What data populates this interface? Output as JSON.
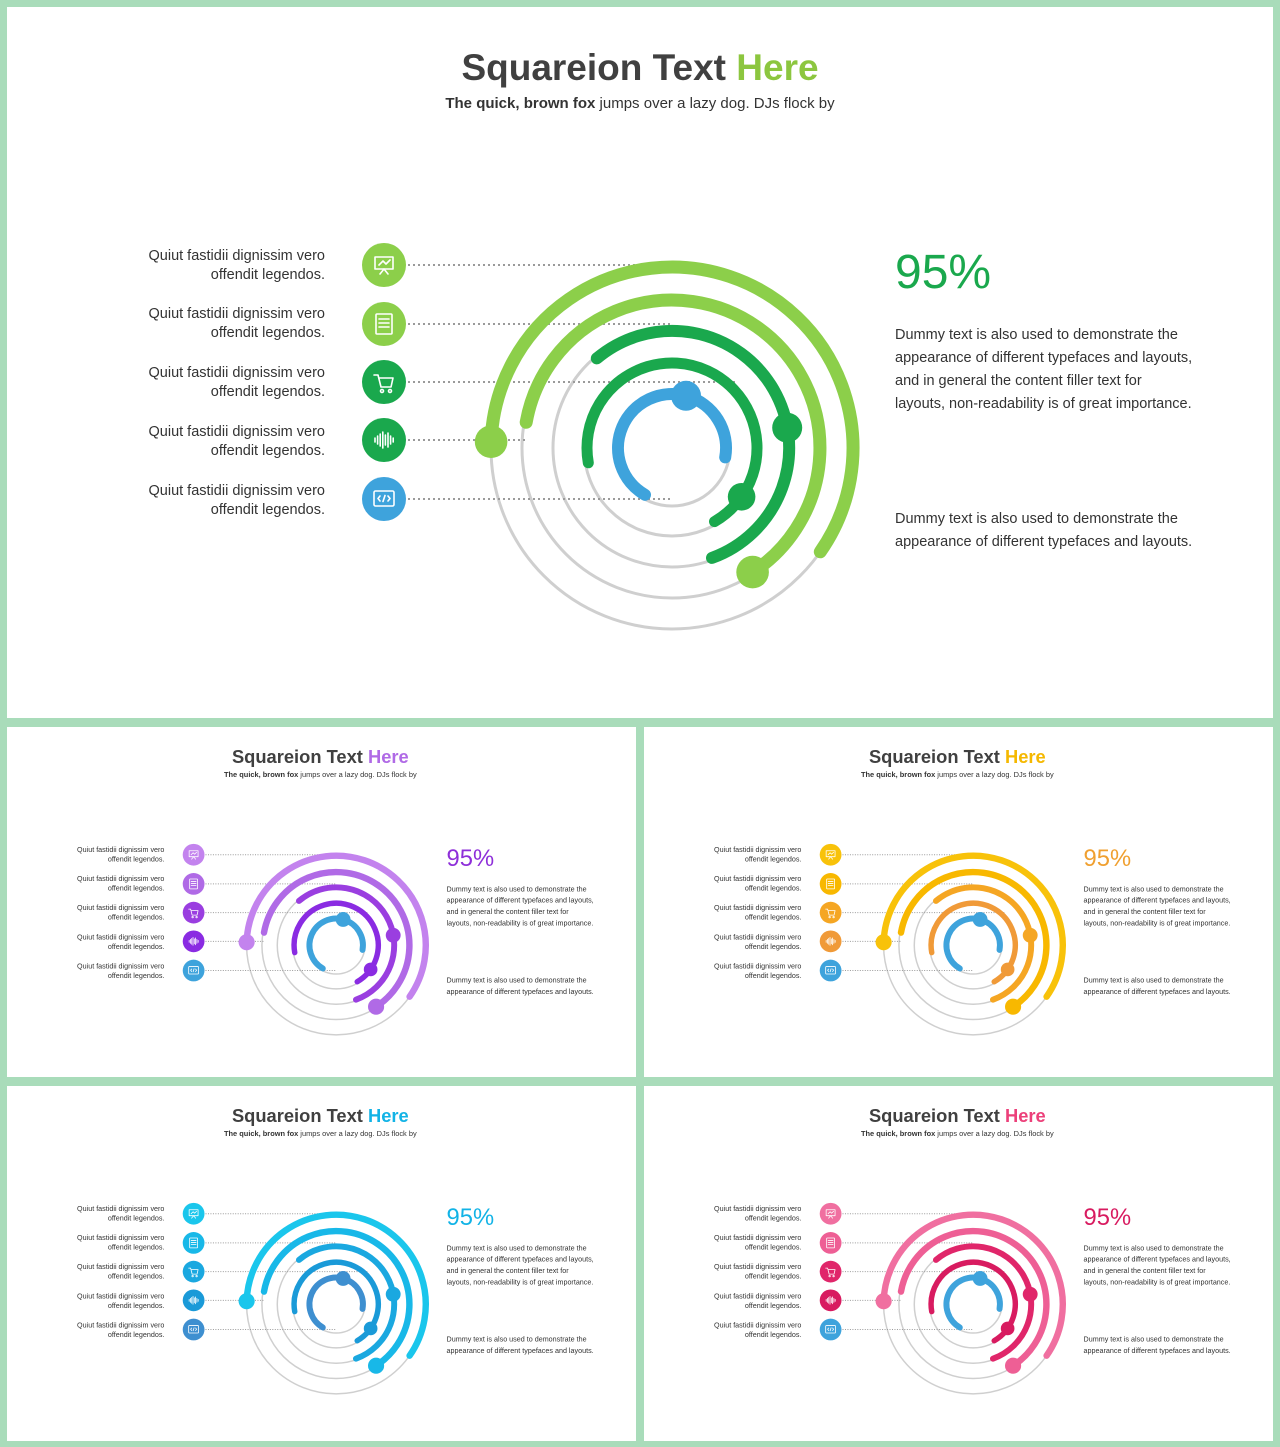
{
  "slides": [
    {
      "title_main": "Squareion Text ",
      "title_accent": "Here",
      "subtitle_bold": "The quick, brown fox",
      "subtitle_rest": " jumps over  a lazy dog. DJs flock by",
      "percent": "95%",
      "paragraph_1": "Dummy text is also used to demonstrate the appearance of different typefaces and layouts, and in general the content filler text for layouts, non-readability is of great importance.",
      "paragraph_2": "Dummy text is also used to demonstrate the appearance of different typefaces and layouts.",
      "legend": [
        {
          "line1": "Quiut fastidii dignissim vero",
          "line2": "offendit legendos.",
          "icon": "presentation-icon"
        },
        {
          "line1": "Quiut fastidii dignissim vero",
          "line2": "offendit legendos.",
          "icon": "document-icon"
        },
        {
          "line1": "Quiut fastidii dignissim vero",
          "line2": "offendit legendos.",
          "icon": "cart-icon"
        },
        {
          "line1": "Quiut fastidii dignissim vero",
          "line2": "offendit legendos.",
          "icon": "soundwave-icon"
        },
        {
          "line1": "Quiut fastidii dignissim vero",
          "line2": "offendit legendos.",
          "icon": "code-icon"
        }
      ]
    }
  ],
  "themes": [
    {
      "name": "green",
      "accent": "#8cc63f",
      "percent_color": "#1aa84d",
      "arcs": [
        "#8ccf4a",
        "#8ccf4a",
        "#1aa84d",
        "#1aa84d",
        "#3ea3dc"
      ]
    },
    {
      "name": "purple",
      "accent": "#b06ae6",
      "percent_color": "#8e2fd9",
      "arcs": [
        "#c383ee",
        "#b06ae6",
        "#9a3ee0",
        "#8a2be2",
        "#3ea3dc"
      ]
    },
    {
      "name": "yellow",
      "accent": "#f5b800",
      "percent_color": "#f0a030",
      "arcs": [
        "#f8c20a",
        "#f8b800",
        "#f5a623",
        "#f09a38",
        "#3ea3dc"
      ]
    },
    {
      "name": "cyan",
      "accent": "#12b3e6",
      "percent_color": "#12b3e6",
      "arcs": [
        "#1ac6ec",
        "#18b8e8",
        "#1aa8e0",
        "#1a9ad8",
        "#3e8fd0"
      ]
    },
    {
      "name": "pink",
      "accent": "#ec407a",
      "percent_color": "#d81b60",
      "arcs": [
        "#f06fa0",
        "#ee5f95",
        "#e0266a",
        "#d81b60",
        "#3ea3dc"
      ]
    }
  ]
}
